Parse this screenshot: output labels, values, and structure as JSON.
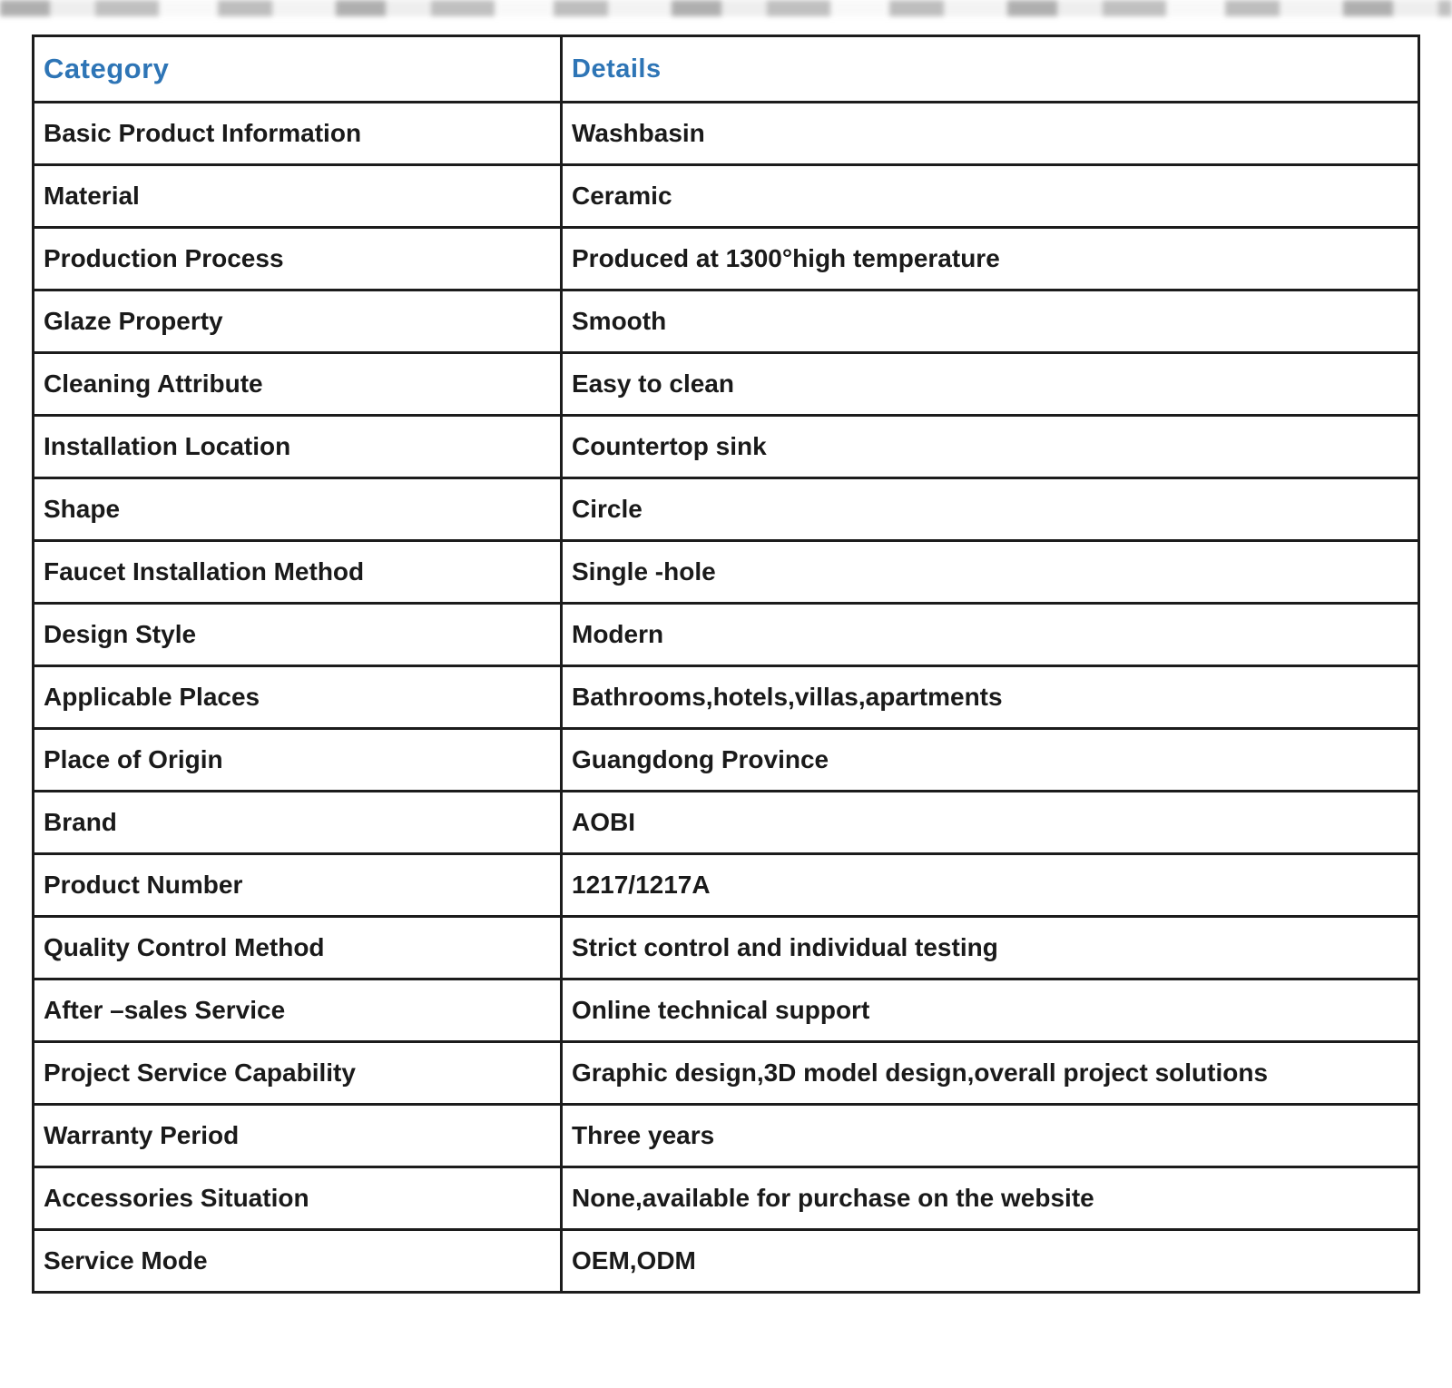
{
  "table": {
    "headers": {
      "category": "Category",
      "details": "Details"
    },
    "header_text_color": "#2e75b6",
    "body_text_color": "#1a1a1a",
    "border_color": "#1c1c1c",
    "rows": [
      {
        "category": "Basic Product Information",
        "details": "Washbasin"
      },
      {
        "category": "Material",
        "details": "Ceramic"
      },
      {
        "category": "Production Process",
        "details": "Produced at 1300°high temperature"
      },
      {
        "category": "Glaze Property",
        "details": "Smooth"
      },
      {
        "category": "Cleaning Attribute",
        "details": "Easy to clean"
      },
      {
        "category": "Installation Location",
        "details": "Countertop sink"
      },
      {
        "category": "Shape",
        "details": "Circle"
      },
      {
        "category": "Faucet Installation Method",
        "details": "Single -hole"
      },
      {
        "category": "Design Style",
        "details": "Modern"
      },
      {
        "category": "Applicable Places",
        "details": "Bathrooms,hotels,villas,apartments"
      },
      {
        "category": "Place of Origin",
        "details": "Guangdong Province"
      },
      {
        "category": "Brand",
        "details": "AOBI"
      },
      {
        "category": "Product Number",
        "details": "1217/1217A"
      },
      {
        "category": "Quality Control Method",
        "details": "Strict control and individual testing"
      },
      {
        "category": "After –sales Service",
        "details": "Online technical support"
      },
      {
        "category": "Project Service Capability",
        "details": "Graphic design,3D model design,overall project solutions"
      },
      {
        "category": "Warranty Period",
        "details": "Three years"
      },
      {
        "category": "Accessories Situation",
        "details": "None,available for purchase on the website"
      },
      {
        "category": "Service Mode",
        "details": "OEM,ODM"
      }
    ]
  }
}
